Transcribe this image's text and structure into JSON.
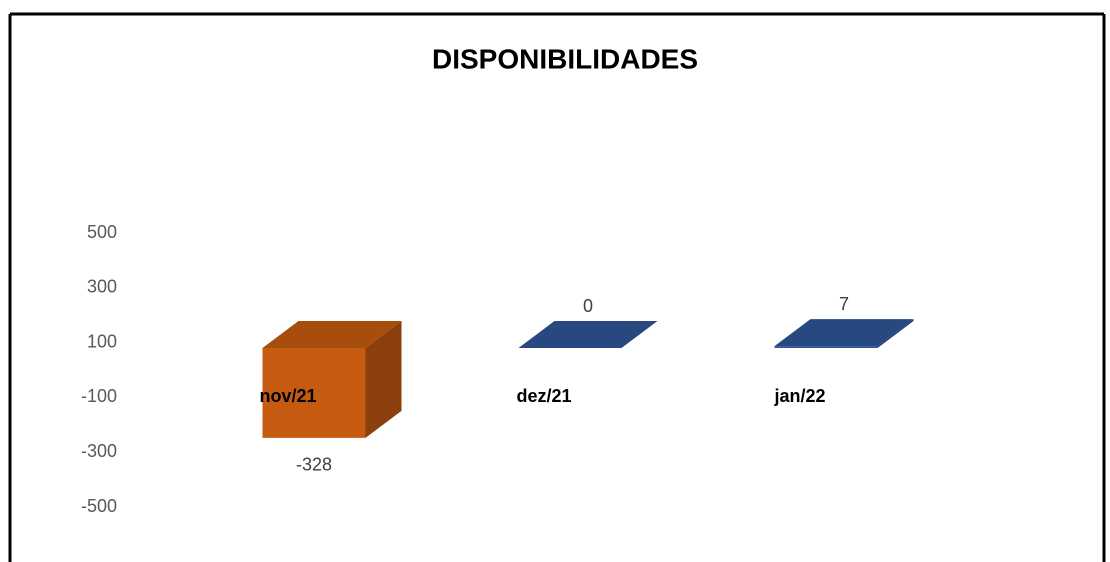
{
  "chart_data": {
    "type": "bar3d",
    "title": "DISPONIBILIDADES",
    "categories": [
      "nov/21",
      "dez/21",
      "jan/22"
    ],
    "values": [
      -328,
      0,
      7
    ],
    "colors": [
      "#c55a11",
      "#2f5597",
      "#2f5597"
    ],
    "ylim": [
      -500,
      500
    ],
    "yticks": [
      -500,
      -300,
      -100,
      100,
      300,
      500
    ],
    "grid": false
  }
}
